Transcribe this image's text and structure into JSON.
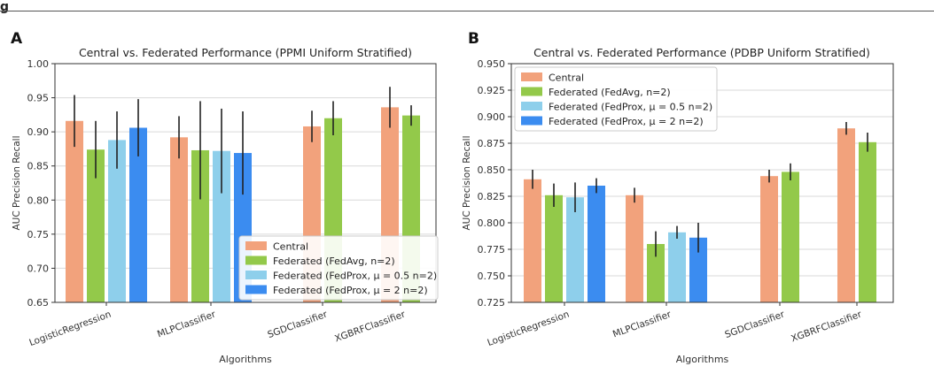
{
  "figure": {
    "header_mark": "g",
    "panel_labels": [
      "A",
      "B"
    ]
  },
  "colors": {
    "central": "#f2a27c",
    "fedavg": "#93c94a",
    "fedprox05": "#8ecfeb",
    "fedprox2": "#3b8cf0",
    "errorbar": "#222222",
    "grid": "#d9d9d9"
  },
  "chart_data": [
    {
      "type": "bar",
      "title": "Central vs. Federated Performance (PPMI Uniform Stratified)",
      "xlabel": "Algorithms",
      "ylabel": "AUC Precision Recall",
      "ylim": [
        0.65,
        1.0
      ],
      "yticks": [
        "0.65",
        "0.70",
        "0.75",
        "0.80",
        "0.85",
        "0.90",
        "0.95",
        "1.00"
      ],
      "grid": true,
      "legend_loc": "lower-right",
      "categories": [
        "LogisticRegression",
        "MLPClassifier",
        "SGDClassifier",
        "XGBRFClassifier"
      ],
      "series": [
        {
          "name": "Central",
          "color_key": "central",
          "values": [
            0.916,
            0.892,
            0.908,
            0.936
          ],
          "errors": [
            0.038,
            0.031,
            0.023,
            0.03
          ]
        },
        {
          "name": "Federated (FedAvg, n=2)",
          "color_key": "fedavg",
          "values": [
            0.874,
            0.873,
            0.92,
            0.924
          ],
          "errors": [
            0.042,
            0.072,
            0.025,
            0.015
          ]
        },
        {
          "name": "Federated (FedProx, μ = 0.5 n=2)",
          "color_key": "fedprox05",
          "values": [
            0.888,
            0.872,
            null,
            null
          ],
          "errors": [
            0.042,
            0.062,
            null,
            null
          ]
        },
        {
          "name": "Federated (FedProx, μ = 2 n=2)",
          "color_key": "fedprox2",
          "values": [
            0.906,
            0.869,
            null,
            null
          ],
          "errors": [
            0.042,
            0.061,
            null,
            null
          ]
        }
      ]
    },
    {
      "type": "bar",
      "title": "Central vs. Federated Performance (PDBP Uniform Stratified)",
      "xlabel": "Algorithms",
      "ylabel": "AUC Precision Recall",
      "ylim": [
        0.725,
        0.95
      ],
      "yticks": [
        "0.725",
        "0.750",
        "0.775",
        "0.800",
        "0.825",
        "0.850",
        "0.875",
        "0.900",
        "0.925",
        "0.950"
      ],
      "grid": true,
      "legend_loc": "upper-left",
      "categories": [
        "LogisticRegression",
        "MLPClassifier",
        "SGDClassifier",
        "XGBRFClassifier"
      ],
      "series": [
        {
          "name": "Central",
          "color_key": "central",
          "values": [
            0.841,
            0.826,
            0.844,
            0.889
          ],
          "errors": [
            0.009,
            0.007,
            0.006,
            0.006
          ]
        },
        {
          "name": "Federated (FedAvg, n=2)",
          "color_key": "fedavg",
          "values": [
            0.826,
            0.78,
            0.848,
            0.876
          ],
          "errors": [
            0.011,
            0.012,
            0.008,
            0.009
          ]
        },
        {
          "name": "Federated (FedProx, μ = 0.5 n=2)",
          "color_key": "fedprox05",
          "values": [
            0.824,
            0.791,
            null,
            null
          ],
          "errors": [
            0.014,
            0.006,
            null,
            null
          ]
        },
        {
          "name": "Federated (FedProx, μ = 2 n=2)",
          "color_key": "fedprox2",
          "values": [
            0.835,
            0.786,
            null,
            null
          ],
          "errors": [
            0.007,
            0.014,
            null,
            null
          ]
        }
      ]
    }
  ]
}
